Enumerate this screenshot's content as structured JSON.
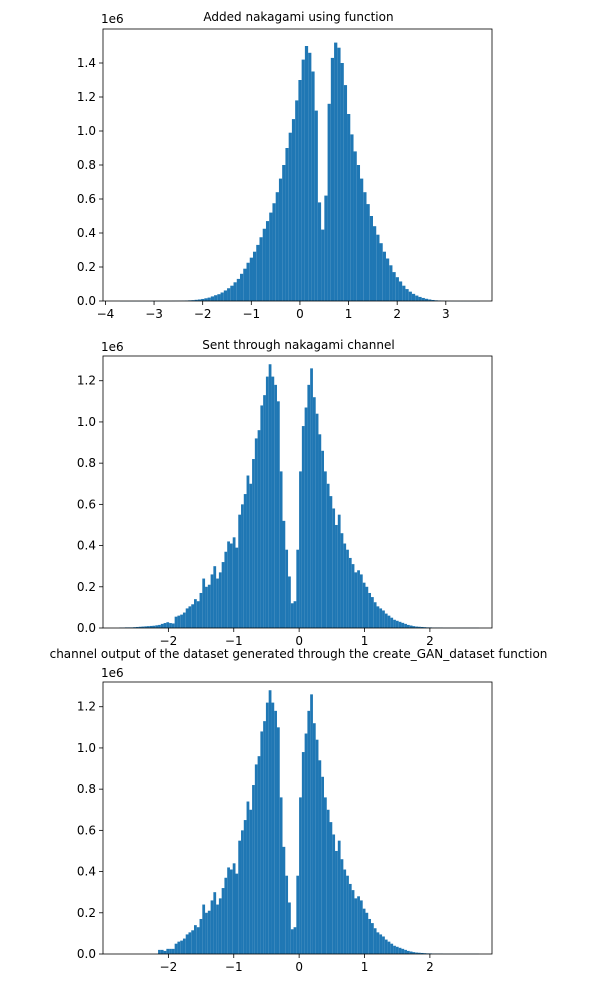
{
  "figure": {
    "bar_color": "#1f77b4"
  },
  "chart_data": [
    {
      "type": "bar",
      "title": "Added nakagami using function",
      "xlabel": "",
      "ylabel": "",
      "y_offset_label": "1e6",
      "xlim": [
        -4.05,
        3.95
      ],
      "ylim": [
        0,
        1.6
      ],
      "xticks": [
        -4,
        -3,
        -2,
        -1,
        0,
        1,
        2,
        3
      ],
      "yticks": [
        0.0,
        0.2,
        0.4,
        0.6,
        0.8,
        1.0,
        1.2,
        1.4
      ],
      "ytick_labels": [
        "0.0",
        "0.2",
        "0.4",
        "0.6",
        "0.8",
        "1.0",
        "1.2",
        "1.4"
      ],
      "bin_start": -3.7,
      "bin_width": 0.0667,
      "values": [
        1e-05,
        1e-05,
        1e-05,
        1e-05,
        1e-05,
        1e-05,
        1e-05,
        2e-05,
        2e-05,
        3e-05,
        4e-05,
        5e-05,
        0.0001,
        0.0002,
        0.0003,
        0.0005,
        0.0008,
        0.0011,
        0.0015,
        0.002,
        0.003,
        0.004,
        0.005,
        0.007,
        0.009,
        0.012,
        0.016,
        0.02,
        0.027,
        0.034,
        0.04,
        0.05,
        0.062,
        0.075,
        0.09,
        0.11,
        0.13,
        0.16,
        0.19,
        0.225,
        0.255,
        0.29,
        0.33,
        0.375,
        0.425,
        0.47,
        0.52,
        0.575,
        0.64,
        0.72,
        0.8,
        0.9,
        0.99,
        1.07,
        1.18,
        1.3,
        1.42,
        1.5,
        1.46,
        1.35,
        1.12,
        0.58,
        0.42,
        0.62,
        1.16,
        1.43,
        1.52,
        1.49,
        1.4,
        1.27,
        1.1,
        0.98,
        0.88,
        0.8,
        0.72,
        0.64,
        0.57,
        0.5,
        0.44,
        0.39,
        0.34,
        0.29,
        0.25,
        0.21,
        0.17,
        0.14,
        0.115,
        0.09,
        0.07,
        0.055,
        0.042,
        0.032,
        0.024,
        0.018,
        0.013,
        0.009,
        0.006,
        0.004,
        0.003,
        0.002,
        0.001,
        0.0007,
        0.0004,
        0.0002,
        0.0001,
        5e-05,
        3e-05,
        2e-05,
        1e-05,
        1e-05,
        1e-05
      ]
    },
    {
      "type": "bar",
      "title": "Sent through nakagami channel",
      "xlabel": "",
      "ylabel": "",
      "y_offset_label": "1e6",
      "xlim": [
        -3.0,
        2.95
      ],
      "ylim": [
        0,
        1.32
      ],
      "xticks": [
        -2,
        -1,
        0,
        1,
        2
      ],
      "yticks": [
        0.0,
        0.2,
        0.4,
        0.6,
        0.8,
        1.0,
        1.2
      ],
      "ytick_labels": [
        "0.0",
        "0.2",
        "0.4",
        "0.6",
        "0.8",
        "1.0",
        "1.2"
      ],
      "bin_start": -2.75,
      "bin_width": 0.0423,
      "values": [
        0.002,
        0.002,
        0.003,
        0.003,
        0.003,
        0.004,
        0.005,
        0.006,
        0.007,
        0.008,
        0.009,
        0.01,
        0.011,
        0.013,
        0.015,
        0.02,
        0.024,
        0.028,
        0.024,
        0.022,
        0.055,
        0.06,
        0.065,
        0.075,
        0.095,
        0.105,
        0.115,
        0.14,
        0.13,
        0.17,
        0.24,
        0.2,
        0.21,
        0.26,
        0.3,
        0.24,
        0.27,
        0.32,
        0.37,
        0.42,
        0.41,
        0.44,
        0.39,
        0.55,
        0.6,
        0.65,
        0.74,
        0.7,
        0.82,
        0.92,
        0.96,
        1.08,
        1.13,
        1.22,
        1.28,
        1.22,
        1.18,
        1.1,
        0.76,
        0.52,
        0.38,
        0.25,
        0.12,
        0.13,
        0.38,
        0.76,
        0.98,
        1.07,
        1.18,
        1.26,
        1.12,
        1.04,
        0.94,
        0.86,
        0.76,
        0.7,
        0.64,
        0.58,
        0.5,
        0.55,
        0.46,
        0.41,
        0.38,
        0.34,
        0.31,
        0.27,
        0.28,
        0.26,
        0.22,
        0.2,
        0.17,
        0.15,
        0.125,
        0.105,
        0.095,
        0.085,
        0.07,
        0.06,
        0.05,
        0.04,
        0.035,
        0.03,
        0.025,
        0.02,
        0.015,
        0.012,
        0.009,
        0.007,
        0.006,
        0.005,
        0.004,
        0.003,
        0.003,
        0.002,
        0.002,
        0.002,
        0.002,
        0.001,
        0.001,
        0.001,
        0.001,
        0.001,
        0.001,
        0.001,
        0.001,
        0.001,
        0.001,
        0.001,
        0.001,
        0.001
      ]
    },
    {
      "type": "bar",
      "title": "channel output of the dataset generated through the create_GAN_dataset function",
      "xlabel": "",
      "ylabel": "",
      "y_offset_label": "1e6",
      "xlim": [
        -3.0,
        2.95
      ],
      "ylim": [
        0,
        1.32
      ],
      "xticks": [
        -2,
        -1,
        0,
        1,
        2
      ],
      "yticks": [
        0.0,
        0.2,
        0.4,
        0.6,
        0.8,
        1.0,
        1.2
      ],
      "ytick_labels": [
        "0.0",
        "0.2",
        "0.4",
        "0.6",
        "0.8",
        "1.0",
        "1.2"
      ],
      "bin_start": -2.75,
      "bin_width": 0.0423,
      "values": [
        0.0,
        0.0,
        0.0,
        0.0,
        0.0,
        0.0,
        0.0,
        0.0,
        0.0,
        0.0,
        0.0,
        0.0,
        0.0,
        0.0,
        0.02,
        0.02,
        0.015,
        0.025,
        0.025,
        0.025,
        0.05,
        0.06,
        0.065,
        0.075,
        0.095,
        0.105,
        0.115,
        0.14,
        0.13,
        0.17,
        0.24,
        0.2,
        0.21,
        0.26,
        0.3,
        0.24,
        0.27,
        0.32,
        0.37,
        0.42,
        0.41,
        0.44,
        0.39,
        0.55,
        0.6,
        0.65,
        0.74,
        0.7,
        0.82,
        0.92,
        0.96,
        1.08,
        1.13,
        1.22,
        1.28,
        1.22,
        1.18,
        1.1,
        0.76,
        0.52,
        0.38,
        0.25,
        0.12,
        0.13,
        0.38,
        0.76,
        0.98,
        1.07,
        1.18,
        1.26,
        1.12,
        1.04,
        0.94,
        0.86,
        0.76,
        0.7,
        0.64,
        0.58,
        0.5,
        0.55,
        0.46,
        0.41,
        0.38,
        0.34,
        0.31,
        0.27,
        0.28,
        0.26,
        0.22,
        0.2,
        0.17,
        0.15,
        0.125,
        0.105,
        0.095,
        0.085,
        0.07,
        0.06,
        0.05,
        0.04,
        0.035,
        0.03,
        0.025,
        0.02,
        0.015,
        0.012,
        0.009,
        0.007,
        0.006,
        0.005,
        0.004,
        0.003,
        0.003,
        0.002,
        0.002,
        0.002,
        0.002,
        0.001,
        0.001,
        0.001,
        0.001,
        0.001,
        0.001,
        0.001,
        0.001,
        0.001,
        0.001,
        0.001,
        0.001,
        0.001
      ]
    }
  ]
}
